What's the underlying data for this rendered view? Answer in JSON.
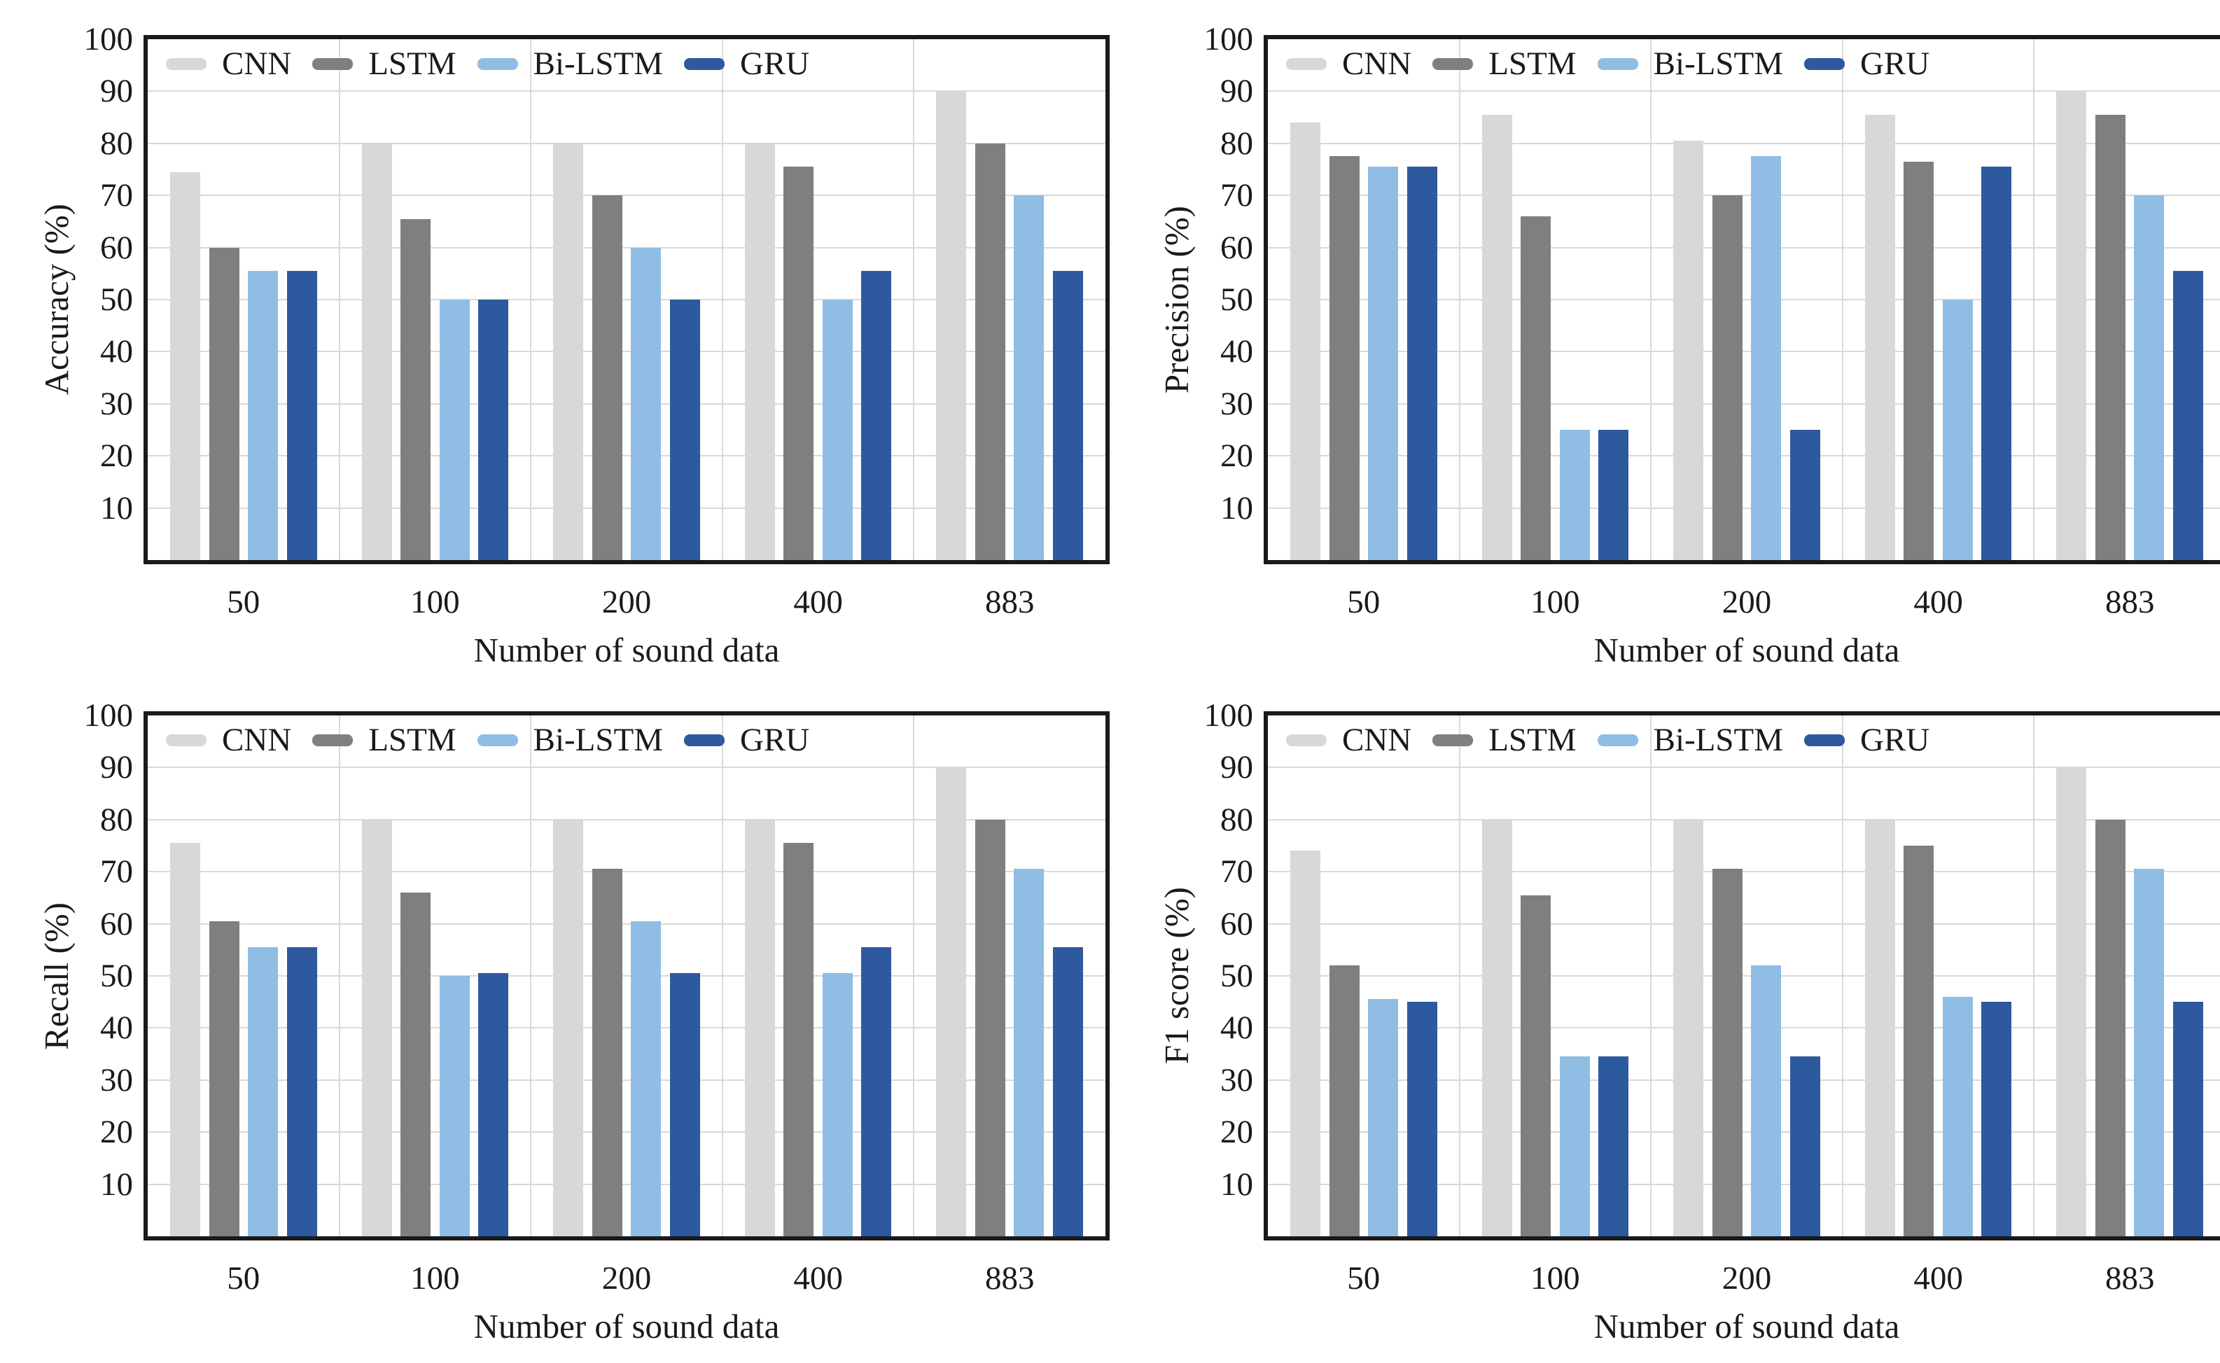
{
  "axis": {
    "ymin": 0,
    "ymax": 100,
    "ystep": 10,
    "yticks": [
      100,
      90,
      80,
      70,
      60,
      50,
      40,
      30,
      20,
      10
    ]
  },
  "colors": {
    "CNN": "#d8d8d8",
    "LSTM": "#7f7f7f",
    "Bi-LSTM": "#8fbde4",
    "GRU": "#2d5a9e",
    "gridline": "#d9d9d9",
    "plot_border": "#1a1a1a",
    "text": "#1a1a1a"
  },
  "legend": [
    "CNN",
    "LSTM",
    "Bi-LSTM",
    "GRU"
  ],
  "chart_data": [
    {
      "type": "bar",
      "ylabel": "Accuracy (%)",
      "xlabel": "Number of sound data",
      "categories": [
        "50",
        "100",
        "200",
        "400",
        "883"
      ],
      "ylim": [
        0,
        100
      ],
      "grid": true,
      "legend_position": "top-left-inside",
      "series": [
        {
          "name": "CNN",
          "values": [
            74.5,
            80,
            80,
            80,
            90
          ]
        },
        {
          "name": "LSTM",
          "values": [
            60,
            65.5,
            70,
            75.5,
            80
          ]
        },
        {
          "name": "Bi-LSTM",
          "values": [
            55.5,
            50,
            60,
            50,
            70
          ]
        },
        {
          "name": "GRU",
          "values": [
            55.5,
            50,
            50,
            55.5,
            55.5
          ]
        }
      ]
    },
    {
      "type": "bar",
      "ylabel": "Precision (%)",
      "xlabel": "Number of sound data",
      "categories": [
        "50",
        "100",
        "200",
        "400",
        "883"
      ],
      "ylim": [
        0,
        100
      ],
      "grid": true,
      "legend_position": "top-left-inside",
      "series": [
        {
          "name": "CNN",
          "values": [
            84,
            85.5,
            80.5,
            85.5,
            90
          ]
        },
        {
          "name": "LSTM",
          "values": [
            77.5,
            66,
            70,
            76.5,
            85.5
          ]
        },
        {
          "name": "Bi-LSTM",
          "values": [
            75.5,
            25,
            77.5,
            50,
            70
          ]
        },
        {
          "name": "GRU",
          "values": [
            75.5,
            25,
            25,
            75.5,
            55.5
          ]
        }
      ]
    },
    {
      "type": "bar",
      "ylabel": "Recall (%)",
      "xlabel": "Number of sound data",
      "categories": [
        "50",
        "100",
        "200",
        "400",
        "883"
      ],
      "ylim": [
        0,
        100
      ],
      "grid": true,
      "legend_position": "top-left-inside",
      "series": [
        {
          "name": "CNN",
          "values": [
            75.5,
            80,
            80,
            80,
            90
          ]
        },
        {
          "name": "LSTM",
          "values": [
            60.5,
            66,
            70.5,
            75.5,
            80
          ]
        },
        {
          "name": "Bi-LSTM",
          "values": [
            55.5,
            50,
            60.5,
            50.5,
            70.5
          ]
        },
        {
          "name": "GRU",
          "values": [
            55.5,
            50.5,
            50.5,
            55.5,
            55.5
          ]
        }
      ]
    },
    {
      "type": "bar",
      "ylabel": "F1 score (%)",
      "xlabel": "Number of sound data",
      "categories": [
        "50",
        "100",
        "200",
        "400",
        "883"
      ],
      "ylim": [
        0,
        100
      ],
      "grid": true,
      "legend_position": "top-left-inside",
      "series": [
        {
          "name": "CNN",
          "values": [
            74,
            80,
            80,
            80,
            90
          ]
        },
        {
          "name": "LSTM",
          "values": [
            52,
            65.5,
            70.5,
            75,
            80
          ]
        },
        {
          "name": "Bi-LSTM",
          "values": [
            45.5,
            34.5,
            52,
            46,
            70.5
          ]
        },
        {
          "name": "GRU",
          "values": [
            45,
            34.5,
            34.5,
            45,
            45
          ]
        }
      ]
    }
  ]
}
